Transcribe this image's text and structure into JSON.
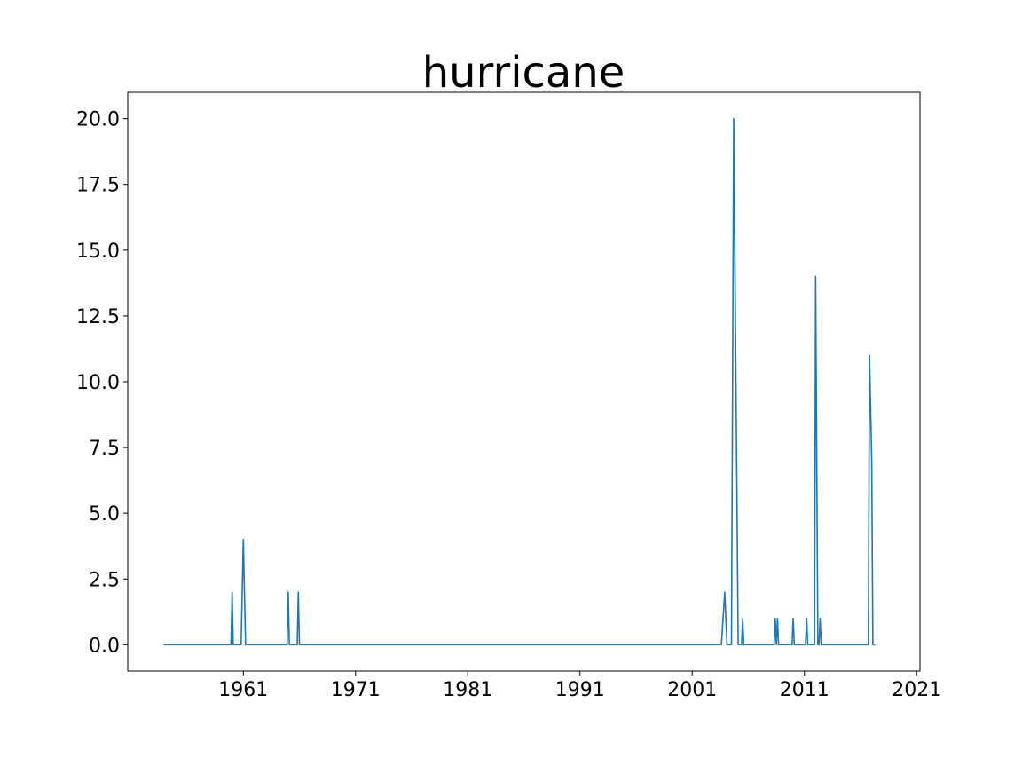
{
  "chart_data": {
    "type": "line",
    "title": "hurricane",
    "xlabel": "",
    "ylabel": "",
    "grid": false,
    "line_color": "#1f77b4",
    "xlim": [
      1950.7,
      2021.3
    ],
    "ylim": [
      -1.0,
      21.0
    ],
    "x_ticks": [
      1961,
      1971,
      1981,
      1991,
      2001,
      2011,
      2021
    ],
    "x_tick_labels": [
      "1961",
      "1971",
      "1981",
      "1991",
      "2001",
      "2011",
      "2021"
    ],
    "y_ticks": [
      0.0,
      2.5,
      5.0,
      7.5,
      10.0,
      12.5,
      15.0,
      17.5,
      20.0
    ],
    "y_tick_labels": [
      "0.0",
      "2.5",
      "5.0",
      "7.5",
      "10.0",
      "12.5",
      "15.0",
      "17.5",
      "20.0"
    ],
    "series": [
      {
        "points": [
          [
            1953.9,
            0
          ],
          [
            1959.9,
            0
          ],
          [
            1960.0,
            2
          ],
          [
            1960.1,
            0
          ],
          [
            1960.8,
            0
          ],
          [
            1961.0,
            4
          ],
          [
            1961.1,
            2
          ],
          [
            1961.2,
            0
          ],
          [
            1964.9,
            0
          ],
          [
            1965.0,
            2
          ],
          [
            1965.1,
            0
          ],
          [
            1965.8,
            0
          ],
          [
            1965.9,
            2
          ],
          [
            1966.0,
            0
          ],
          [
            2003.6,
            0
          ],
          [
            2003.9,
            2
          ],
          [
            2004.1,
            0
          ],
          [
            2004.5,
            0
          ],
          [
            2004.7,
            20
          ],
          [
            2005.1,
            0
          ],
          [
            2005.4,
            0
          ],
          [
            2005.5,
            1
          ],
          [
            2005.6,
            0
          ],
          [
            2008.3,
            0
          ],
          [
            2008.4,
            1
          ],
          [
            2008.5,
            0
          ],
          [
            2008.6,
            1
          ],
          [
            2008.7,
            0
          ],
          [
            2009.9,
            0
          ],
          [
            2010.0,
            1
          ],
          [
            2010.1,
            0
          ],
          [
            2011.1,
            0
          ],
          [
            2011.2,
            1
          ],
          [
            2011.3,
            0
          ],
          [
            2011.9,
            0
          ],
          [
            2012.0,
            14
          ],
          [
            2012.2,
            0
          ],
          [
            2012.3,
            0
          ],
          [
            2012.4,
            1
          ],
          [
            2012.5,
            0
          ],
          [
            2016.7,
            0
          ],
          [
            2016.8,
            11
          ],
          [
            2017.0,
            7
          ],
          [
            2017.1,
            0
          ],
          [
            2017.3,
            0
          ]
        ]
      }
    ]
  }
}
